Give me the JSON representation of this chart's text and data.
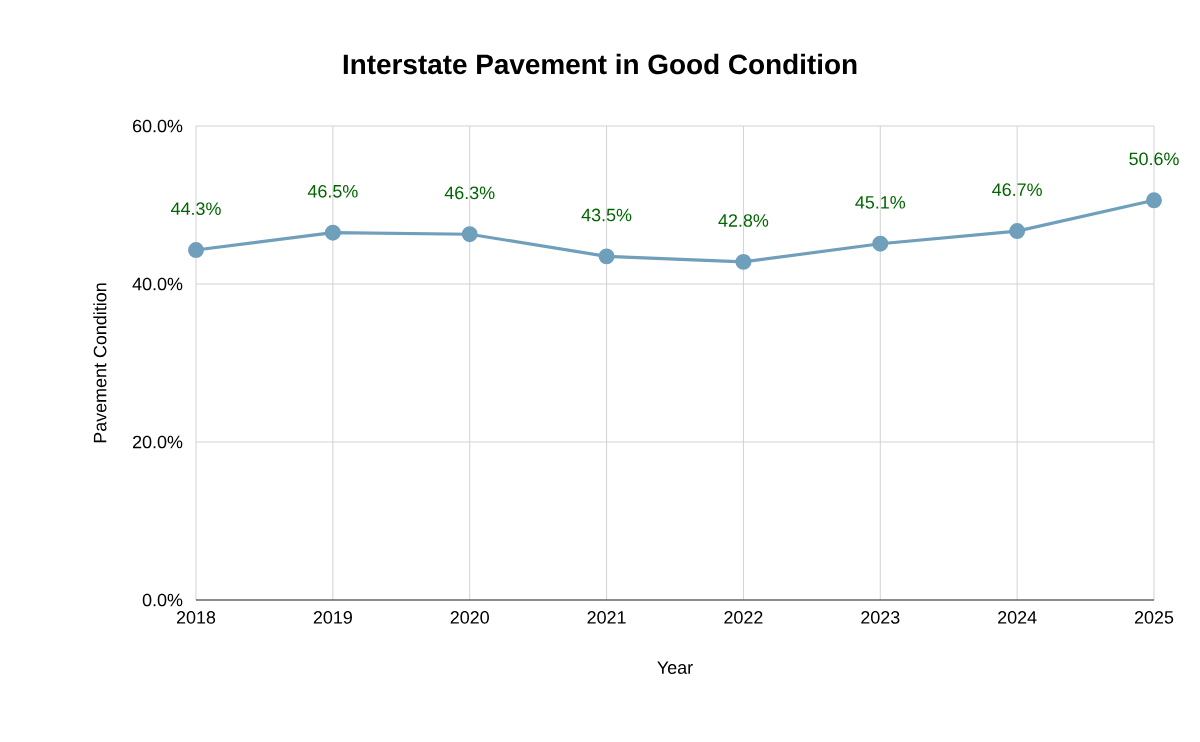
{
  "chart_data": {
    "type": "line",
    "title": "Interstate Pavement in Good Condition",
    "xlabel": "Year",
    "ylabel": "Pavement Condition",
    "categories": [
      "2018",
      "2019",
      "2020",
      "2021",
      "2022",
      "2023",
      "2024",
      "2025"
    ],
    "series": [
      {
        "color": "#6f9fbb",
        "values": [
          44.3,
          46.5,
          46.3,
          43.5,
          42.8,
          45.1,
          46.7,
          50.6
        ],
        "value_labels": [
          "44.3%",
          "46.5%",
          "46.3%",
          "43.5%",
          "42.8%",
          "45.1%",
          "46.7%",
          "50.6%"
        ]
      }
    ],
    "ylim": [
      0,
      60
    ],
    "yticks": [
      {
        "value": 0,
        "label": "0.0%"
      },
      {
        "value": 20,
        "label": "20.0%"
      },
      {
        "value": 40,
        "label": "40.0%"
      },
      {
        "value": 60,
        "label": "60.0%"
      }
    ],
    "grid": true,
    "marker": "circle",
    "line_style": "solid"
  }
}
